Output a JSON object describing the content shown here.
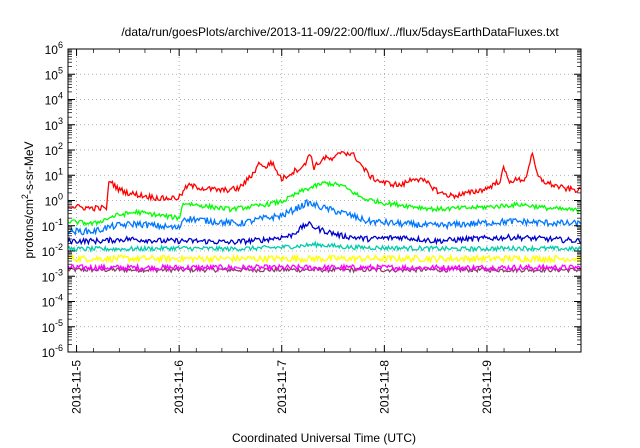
{
  "chart_data": {
    "type": "line",
    "title": "/data/run/goesPlots/archive/2013-11-09/22:00/flux/../flux/5daysEarthDataFluxes.txt",
    "xlabel": "Coordinated Universal Time (UTC)",
    "ylabel_parts": [
      "protons/cm",
      "2",
      "-s-sr-MeV"
    ],
    "y_scale": "log",
    "ylim": [
      1e-06,
      1000000.0
    ],
    "y_ticks": [
      {
        "value": 1000000.0,
        "base": "10",
        "exp": "6"
      },
      {
        "value": 100000.0,
        "base": "10",
        "exp": "5"
      },
      {
        "value": 10000.0,
        "base": "10",
        "exp": "4"
      },
      {
        "value": 1000.0,
        "base": "10",
        "exp": "3"
      },
      {
        "value": 100.0,
        "base": "10",
        "exp": "2"
      },
      {
        "value": 10.0,
        "base": "10",
        "exp": "1"
      },
      {
        "value": 1,
        "base": "10",
        "exp": "0"
      },
      {
        "value": 0.1,
        "base": "10",
        "exp": "-1"
      },
      {
        "value": 0.01,
        "base": "10",
        "exp": "-2"
      },
      {
        "value": 0.001,
        "base": "10",
        "exp": "-3"
      },
      {
        "value": 0.0001,
        "base": "10",
        "exp": "-4"
      },
      {
        "value": 1e-05,
        "base": "10",
        "exp": "-5"
      },
      {
        "value": 1e-06,
        "base": "10",
        "exp": "-6"
      }
    ],
    "xlim": [
      "2013-11-04T22:00",
      "2013-11-09T22:00"
    ],
    "x_ticks": [
      {
        "value": "2013-11-05T00:00",
        "label": "2013-11-5"
      },
      {
        "value": "2013-11-06T00:00",
        "label": "2013-11-6"
      },
      {
        "value": "2013-11-07T00:00",
        "label": "2013-11-7"
      },
      {
        "value": "2013-11-08T00:00",
        "label": "2013-11-8"
      },
      {
        "value": "2013-11-09T00:00",
        "label": "2013-11-9"
      }
    ],
    "grid": true,
    "legend": "none",
    "series": [
      {
        "color": "#ff0000",
        "points": [
          [
            "2013-11-04T22:00",
            0.6
          ],
          [
            "2013-11-05T03:00",
            0.5
          ],
          [
            "2013-11-05T07:00",
            0.5
          ],
          [
            "2013-11-05T07:40",
            7
          ],
          [
            "2013-11-05T09:30",
            3
          ],
          [
            "2013-11-05T12:00",
            2
          ],
          [
            "2013-11-05T16:00",
            1.5
          ],
          [
            "2013-11-05T20:00",
            1.2
          ],
          [
            "2013-11-06T00:00",
            1.3
          ],
          [
            "2013-11-06T02:00",
            4
          ],
          [
            "2013-11-06T06:00",
            3
          ],
          [
            "2013-11-06T10:00",
            2.5
          ],
          [
            "2013-11-06T14:00",
            3
          ],
          [
            "2013-11-06T17:00",
            10
          ],
          [
            "2013-11-06T19:00",
            35
          ],
          [
            "2013-11-06T20:00",
            18
          ],
          [
            "2013-11-06T21:30",
            35
          ],
          [
            "2013-11-07T00:00",
            7
          ],
          [
            "2013-11-07T03:00",
            15
          ],
          [
            "2013-11-07T05:30",
            25
          ],
          [
            "2013-11-07T06:30",
            90
          ],
          [
            "2013-11-07T07:30",
            20
          ],
          [
            "2013-11-07T10:00",
            50
          ],
          [
            "2013-11-07T12:00",
            40
          ],
          [
            "2013-11-07T14:00",
            90
          ],
          [
            "2013-11-07T17:00",
            60
          ],
          [
            "2013-11-07T19:00",
            20
          ],
          [
            "2013-11-07T21:00",
            8
          ],
          [
            "2013-11-08T00:00",
            5
          ],
          [
            "2013-11-08T04:00",
            4
          ],
          [
            "2013-11-08T07:00",
            8
          ],
          [
            "2013-11-08T10:00",
            5
          ],
          [
            "2013-11-08T13:00",
            2
          ],
          [
            "2013-11-08T16:00",
            1.5
          ],
          [
            "2013-11-08T20:00",
            2
          ],
          [
            "2013-11-09T00:00",
            3
          ],
          [
            "2013-11-09T03:00",
            6
          ],
          [
            "2013-11-09T04:00",
            20
          ],
          [
            "2013-11-09T05:00",
            6
          ],
          [
            "2013-11-09T09:00",
            7
          ],
          [
            "2013-11-09T10:30",
            70
          ],
          [
            "2013-11-09T12:00",
            8
          ],
          [
            "2013-11-09T14:00",
            5
          ],
          [
            "2013-11-09T18:00",
            3
          ],
          [
            "2013-11-09T22:00",
            2.5
          ]
        ]
      },
      {
        "color": "#00ff00",
        "points": [
          [
            "2013-11-04T22:00",
            0.15
          ],
          [
            "2013-11-05T04:00",
            0.12
          ],
          [
            "2013-11-05T09:00",
            0.25
          ],
          [
            "2013-11-05T14:00",
            0.35
          ],
          [
            "2013-11-06T00:00",
            0.2
          ],
          [
            "2013-11-06T01:00",
            0.8
          ],
          [
            "2013-11-06T06:00",
            0.6
          ],
          [
            "2013-11-06T12:00",
            0.45
          ],
          [
            "2013-11-06T18:00",
            0.6
          ],
          [
            "2013-11-07T00:00",
            0.9
          ],
          [
            "2013-11-07T05:00",
            2.5
          ],
          [
            "2013-11-07T10:00",
            5
          ],
          [
            "2013-11-07T14:00",
            4
          ],
          [
            "2013-11-07T19:00",
            1.2
          ],
          [
            "2013-11-08T00:00",
            0.8
          ],
          [
            "2013-11-08T06:00",
            0.6
          ],
          [
            "2013-11-08T12:00",
            0.45
          ],
          [
            "2013-11-08T18:00",
            0.5
          ],
          [
            "2013-11-09T00:00",
            0.55
          ],
          [
            "2013-11-09T08:00",
            0.7
          ],
          [
            "2013-11-09T14:00",
            0.5
          ],
          [
            "2013-11-09T22:00",
            0.4
          ]
        ]
      },
      {
        "color": "#0077ff",
        "points": [
          [
            "2013-11-04T22:00",
            0.06
          ],
          [
            "2013-11-05T04:00",
            0.06
          ],
          [
            "2013-11-05T09:00",
            0.1
          ],
          [
            "2013-11-05T14:00",
            0.12
          ],
          [
            "2013-11-06T00:00",
            0.08
          ],
          [
            "2013-11-06T01:00",
            0.2
          ],
          [
            "2013-11-06T08:00",
            0.15
          ],
          [
            "2013-11-06T14:00",
            0.12
          ],
          [
            "2013-11-06T20:00",
            0.2
          ],
          [
            "2013-11-07T00:00",
            0.25
          ],
          [
            "2013-11-07T06:00",
            0.8
          ],
          [
            "2013-11-07T10:00",
            0.5
          ],
          [
            "2013-11-07T15:00",
            0.3
          ],
          [
            "2013-11-07T20:00",
            0.15
          ],
          [
            "2013-11-08T04:00",
            0.12
          ],
          [
            "2013-11-08T12:00",
            0.1
          ],
          [
            "2013-11-08T20:00",
            0.12
          ],
          [
            "2013-11-09T06:00",
            0.15
          ],
          [
            "2013-11-09T14:00",
            0.13
          ],
          [
            "2013-11-09T22:00",
            0.12
          ]
        ]
      },
      {
        "color": "#0000cc",
        "points": [
          [
            "2013-11-04T22:00",
            0.025
          ],
          [
            "2013-11-05T06:00",
            0.025
          ],
          [
            "2013-11-05T12:00",
            0.03
          ],
          [
            "2013-11-05T20:00",
            0.025
          ],
          [
            "2013-11-06T04:00",
            0.025
          ],
          [
            "2013-11-06T12:00",
            0.022
          ],
          [
            "2013-11-06T20:00",
            0.028
          ],
          [
            "2013-11-07T02:00",
            0.04
          ],
          [
            "2013-11-07T06:00",
            0.12
          ],
          [
            "2013-11-07T09:00",
            0.07
          ],
          [
            "2013-11-07T14:00",
            0.04
          ],
          [
            "2013-11-07T20:00",
            0.03
          ],
          [
            "2013-11-08T04:00",
            0.035
          ],
          [
            "2013-11-08T12:00",
            0.025
          ],
          [
            "2013-11-08T20:00",
            0.03
          ],
          [
            "2013-11-09T06:00",
            0.035
          ],
          [
            "2013-11-09T14:00",
            0.03
          ],
          [
            "2013-11-09T22:00",
            0.025
          ]
        ]
      },
      {
        "color": "#00ccaa",
        "points": [
          [
            "2013-11-04T22:00",
            0.012
          ],
          [
            "2013-11-05T12:00",
            0.012
          ],
          [
            "2013-11-06T00:00",
            0.013
          ],
          [
            "2013-11-06T12:00",
            0.012
          ],
          [
            "2013-11-07T00:00",
            0.014
          ],
          [
            "2013-11-07T08:00",
            0.018
          ],
          [
            "2013-11-07T16:00",
            0.014
          ],
          [
            "2013-11-08T06:00",
            0.013
          ],
          [
            "2013-11-08T18:00",
            0.012
          ],
          [
            "2013-11-09T08:00",
            0.013
          ],
          [
            "2013-11-09T22:00",
            0.012
          ]
        ]
      },
      {
        "color": "#ffff00",
        "points": [
          [
            "2013-11-04T22:00",
            0.005
          ],
          [
            "2013-11-05T12:00",
            0.005
          ],
          [
            "2013-11-06T12:00",
            0.005
          ],
          [
            "2013-11-07T12:00",
            0.005
          ],
          [
            "2013-11-08T12:00",
            0.005
          ],
          [
            "2013-11-09T22:00",
            0.005
          ]
        ]
      },
      {
        "color": "#ff00ff",
        "points": [
          [
            "2013-11-04T22:00",
            0.0022
          ],
          [
            "2013-11-06T12:00",
            0.0022
          ],
          [
            "2013-11-09T22:00",
            0.0022
          ]
        ]
      },
      {
        "color": "#884466",
        "points": [
          [
            "2013-11-04T22:00",
            0.0018
          ],
          [
            "2013-11-06T12:00",
            0.0018
          ],
          [
            "2013-11-09T22:00",
            0.0018
          ]
        ]
      }
    ]
  }
}
